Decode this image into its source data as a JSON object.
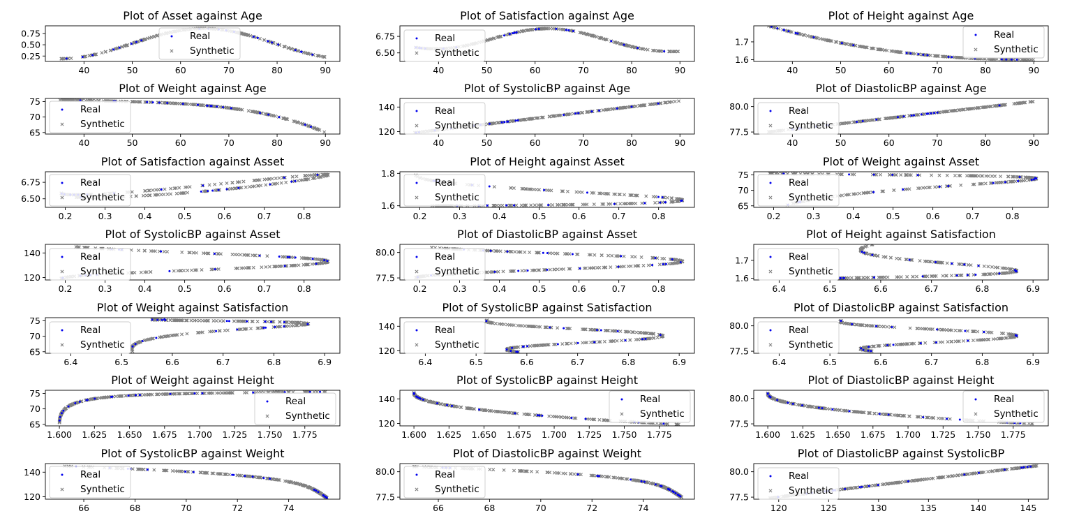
{
  "legend_labels": {
    "real": "Real",
    "synthetic": "Synthetic"
  },
  "colors": {
    "real": "#0000ee",
    "synthetic": "#808080"
  },
  "chart_data": [
    {
      "type": "scatter",
      "title": "Plot of Asset against Age",
      "xlabel": "",
      "ylabel": "",
      "xlim": [
        32,
        93
      ],
      "ylim": [
        0.13,
        0.92
      ],
      "xticks": [
        "40",
        "50",
        "60",
        "70",
        "80",
        "90"
      ],
      "yticks": [
        "0.25",
        "0.50",
        "0.75"
      ],
      "legend": "top-center",
      "curve": {
        "shape": "fn",
        "f": "asset_age"
      }
    },
    {
      "type": "scatter",
      "title": "Plot of Satisfaction against Age",
      "xlabel": "",
      "ylabel": "",
      "xlim": [
        32,
        93
      ],
      "ylim": [
        6.37,
        6.91
      ],
      "xticks": [
        "40",
        "50",
        "60",
        "70",
        "80",
        "90"
      ],
      "yticks": [
        "6.50",
        "6.75"
      ],
      "legend": "top-left",
      "curve": {
        "shape": "fn",
        "f": "sat_age"
      }
    },
    {
      "type": "scatter",
      "title": "Plot of Height against Age",
      "xlabel": "",
      "ylabel": "",
      "xlim": [
        32,
        93
      ],
      "ylim": [
        1.59,
        1.79
      ],
      "xticks": [
        "40",
        "50",
        "60",
        "70",
        "80",
        "90"
      ],
      "yticks": [
        "1.6",
        "1.7"
      ],
      "legend": "top-right",
      "curve": {
        "shape": "fn",
        "f": "height_age"
      }
    },
    {
      "type": "scatter",
      "title": "Plot of Weight against Age",
      "xlabel": "",
      "ylabel": "",
      "xlim": [
        32,
        93
      ],
      "ylim": [
        64.5,
        76
      ],
      "xticks": [
        "40",
        "50",
        "60",
        "70",
        "80",
        "90"
      ],
      "yticks": [
        "65",
        "70",
        "75"
      ],
      "legend": "bottom-left",
      "curve": {
        "shape": "fn",
        "f": "weight_age"
      }
    },
    {
      "type": "scatter",
      "title": "Plot of SystolicBP against Age",
      "xlabel": "",
      "ylabel": "",
      "xlim": [
        32,
        93
      ],
      "ylim": [
        118,
        147
      ],
      "xticks": [
        "40",
        "50",
        "60",
        "70",
        "80",
        "90"
      ],
      "yticks": [
        "120",
        "140"
      ],
      "legend": "top-left",
      "curve": {
        "shape": "line",
        "x": [
          35,
          90
        ],
        "y": [
          119,
          145
        ]
      }
    },
    {
      "type": "scatter",
      "title": "Plot of DiastolicBP against Age",
      "xlabel": "",
      "ylabel": "",
      "xlim": [
        32,
        93
      ],
      "ylim": [
        77.3,
        80.8
      ],
      "xticks": [
        "40",
        "50",
        "60",
        "70",
        "80",
        "90"
      ],
      "yticks": [
        "77.5",
        "80.0"
      ],
      "legend": "top-left",
      "curve": {
        "shape": "line",
        "x": [
          35,
          90
        ],
        "y": [
          77.5,
          80.5
        ]
      }
    },
    {
      "type": "scatter",
      "title": "Plot of Satisfaction against Asset",
      "xlabel": "",
      "ylabel": "",
      "xlim": [
        0.15,
        0.89
      ],
      "ylim": [
        6.37,
        6.91
      ],
      "xticks": [
        "0.2",
        "0.3",
        "0.4",
        "0.5",
        "0.6",
        "0.7",
        "0.8"
      ],
      "yticks": [
        "6.50",
        "6.75"
      ],
      "legend": "bottom-left",
      "curve": {
        "shape": "param",
        "fx": "asset",
        "fy": "sat"
      }
    },
    {
      "type": "scatter",
      "title": "Plot of Height against Asset",
      "xlabel": "",
      "ylabel": "",
      "xlim": [
        0.15,
        0.89
      ],
      "ylim": [
        1.59,
        1.81
      ],
      "xticks": [
        "0.2",
        "0.3",
        "0.4",
        "0.5",
        "0.6",
        "0.7",
        "0.8"
      ],
      "yticks": [
        "1.6",
        "1.8"
      ],
      "legend": "bottom-left",
      "curve": {
        "shape": "param",
        "fx": "asset",
        "fy": "height"
      }
    },
    {
      "type": "scatter",
      "title": "Plot of Weight against Asset",
      "xlabel": "",
      "ylabel": "",
      "xlim": [
        0.15,
        0.89
      ],
      "ylim": [
        64.5,
        76
      ],
      "xticks": [
        "0.2",
        "0.3",
        "0.4",
        "0.5",
        "0.6",
        "0.7",
        "0.8"
      ],
      "yticks": [
        "65",
        "70",
        "75"
      ],
      "legend": "bottom-left",
      "curve": {
        "shape": "param",
        "fx": "asset",
        "fy": "weight"
      }
    },
    {
      "type": "scatter",
      "title": "Plot of SystolicBP against Asset",
      "xlabel": "",
      "ylabel": "",
      "xlim": [
        0.15,
        0.89
      ],
      "ylim": [
        118,
        147
      ],
      "xticks": [
        "0.2",
        "0.3",
        "0.4",
        "0.5",
        "0.6",
        "0.7",
        "0.8"
      ],
      "yticks": [
        "120",
        "140"
      ],
      "legend": "top-left",
      "curve": {
        "shape": "param",
        "fx": "asset",
        "fy": "sbp"
      }
    },
    {
      "type": "scatter",
      "title": "Plot of DiastolicBP against Asset",
      "xlabel": "",
      "ylabel": "",
      "xlim": [
        0.15,
        0.89
      ],
      "ylim": [
        77.3,
        80.8
      ],
      "xticks": [
        "0.2",
        "0.3",
        "0.4",
        "0.5",
        "0.6",
        "0.7",
        "0.8"
      ],
      "yticks": [
        "77.5",
        "80.0"
      ],
      "legend": "top-left",
      "curve": {
        "shape": "param",
        "fx": "asset",
        "fy": "dbp"
      }
    },
    {
      "type": "scatter",
      "title": "Plot of Height against Satisfaction",
      "xlabel": "",
      "ylabel": "",
      "xlim": [
        6.35,
        6.93
      ],
      "ylim": [
        1.59,
        1.79
      ],
      "xticks": [
        "6.4",
        "6.5",
        "6.6",
        "6.7",
        "6.8",
        "6.9"
      ],
      "yticks": [
        "1.6",
        "1.7"
      ],
      "legend": "top-left",
      "curve": {
        "shape": "param",
        "fx": "sat",
        "fy": "height"
      }
    },
    {
      "type": "scatter",
      "title": "Plot of Weight against Satisfaction",
      "xlabel": "",
      "ylabel": "",
      "xlim": [
        6.35,
        6.93
      ],
      "ylim": [
        64.5,
        76
      ],
      "xticks": [
        "6.4",
        "6.5",
        "6.6",
        "6.7",
        "6.8",
        "6.9"
      ],
      "yticks": [
        "65",
        "70",
        "75"
      ],
      "legend": "top-left",
      "curve": {
        "shape": "param",
        "fx": "sat",
        "fy": "weight"
      }
    },
    {
      "type": "scatter",
      "title": "Plot of SystolicBP against Satisfaction",
      "xlabel": "",
      "ylabel": "",
      "xlim": [
        6.35,
        6.93
      ],
      "ylim": [
        118,
        147
      ],
      "xticks": [
        "6.4",
        "6.5",
        "6.6",
        "6.7",
        "6.8",
        "6.9"
      ],
      "yticks": [
        "120",
        "140"
      ],
      "legend": "top-left",
      "curve": {
        "shape": "param",
        "fx": "sat",
        "fy": "sbp"
      }
    },
    {
      "type": "scatter",
      "title": "Plot of DiastolicBP against Satisfaction",
      "xlabel": "",
      "ylabel": "",
      "xlim": [
        6.35,
        6.93
      ],
      "ylim": [
        77.3,
        80.8
      ],
      "xticks": [
        "6.4",
        "6.5",
        "6.6",
        "6.7",
        "6.8",
        "6.9"
      ],
      "yticks": [
        "77.5",
        "80.0"
      ],
      "legend": "top-left",
      "curve": {
        "shape": "param",
        "fx": "sat",
        "fy": "dbp"
      }
    },
    {
      "type": "scatter",
      "title": "Plot of Weight against Height",
      "xlabel": "",
      "ylabel": "",
      "xlim": [
        1.59,
        1.8
      ],
      "ylim": [
        64.5,
        76
      ],
      "xticks": [
        "1.600",
        "1.625",
        "1.650",
        "1.675",
        "1.700",
        "1.725",
        "1.750",
        "1.775"
      ],
      "yticks": [
        "65",
        "70",
        "75"
      ],
      "legend": "bottom-right",
      "curve": {
        "shape": "param",
        "fx": "height",
        "fy": "weight"
      }
    },
    {
      "type": "scatter",
      "title": "Plot of SystolicBP against Height",
      "xlabel": "",
      "ylabel": "",
      "xlim": [
        1.59,
        1.8
      ],
      "ylim": [
        118,
        147
      ],
      "xticks": [
        "1.600",
        "1.625",
        "1.650",
        "1.675",
        "1.700",
        "1.725",
        "1.750",
        "1.775"
      ],
      "yticks": [
        "120",
        "140"
      ],
      "legend": "top-right",
      "curve": {
        "shape": "param",
        "fx": "height",
        "fy": "sbp"
      }
    },
    {
      "type": "scatter",
      "title": "Plot of DiastolicBP against Height",
      "xlabel": "",
      "ylabel": "",
      "xlim": [
        1.59,
        1.8
      ],
      "ylim": [
        77.3,
        80.8
      ],
      "xticks": [
        "1.600",
        "1.625",
        "1.650",
        "1.675",
        "1.700",
        "1.725",
        "1.750",
        "1.775"
      ],
      "yticks": [
        "77.5",
        "80.0"
      ],
      "legend": "top-right",
      "curve": {
        "shape": "param",
        "fx": "height",
        "fy": "dbp"
      }
    },
    {
      "type": "scatter",
      "title": "Plot of SystolicBP against Weight",
      "xlabel": "",
      "ylabel": "",
      "xlim": [
        64.5,
        76
      ],
      "ylim": [
        118,
        147
      ],
      "xticks": [
        "66",
        "68",
        "70",
        "72",
        "74"
      ],
      "yticks": [
        "120",
        "140"
      ],
      "legend": "bottom-left",
      "curve": {
        "shape": "param",
        "fx": "weight",
        "fy": "sbp"
      }
    },
    {
      "type": "scatter",
      "title": "Plot of DiastolicBP against Weight",
      "xlabel": "",
      "ylabel": "",
      "xlim": [
        64.5,
        76
      ],
      "ylim": [
        77.3,
        80.8
      ],
      "xticks": [
        "66",
        "68",
        "70",
        "72",
        "74"
      ],
      "yticks": [
        "77.5",
        "80.0"
      ],
      "legend": "bottom-left",
      "curve": {
        "shape": "param",
        "fx": "weight",
        "fy": "dbp"
      }
    },
    {
      "type": "scatter",
      "title": "Plot of DiastolicBP against SystolicBP",
      "xlabel": "",
      "ylabel": "",
      "xlim": [
        117.5,
        147
      ],
      "ylim": [
        77.3,
        80.8
      ],
      "xticks": [
        "120",
        "125",
        "130",
        "135",
        "140",
        "145"
      ],
      "yticks": [
        "77.5",
        "80.0"
      ],
      "legend": "top-left",
      "curve": {
        "shape": "line",
        "x": [
          119,
          146
        ],
        "y": [
          77.4,
          80.6
        ]
      }
    }
  ]
}
